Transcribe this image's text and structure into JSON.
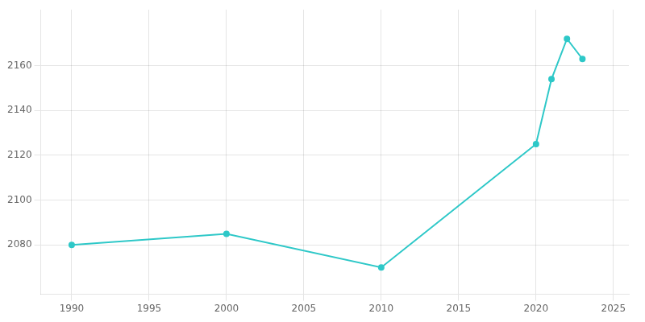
{
  "chart_data": {
    "type": "line",
    "x": [
      1990,
      2000,
      2010,
      2020,
      2021,
      2022,
      2023
    ],
    "values": [
      2080,
      2085,
      2070,
      2125,
      2154,
      2172,
      2163
    ],
    "color": "#2EC8C8",
    "marker": "circle",
    "xlim": [
      1988,
      2026
    ],
    "ylim": [
      2058,
      2185
    ],
    "xticks": [
      1990,
      1995,
      2000,
      2005,
      2010,
      2015,
      2020,
      2025
    ],
    "yticks": [
      2080,
      2100,
      2120,
      2140,
      2160
    ],
    "grid": true
  }
}
